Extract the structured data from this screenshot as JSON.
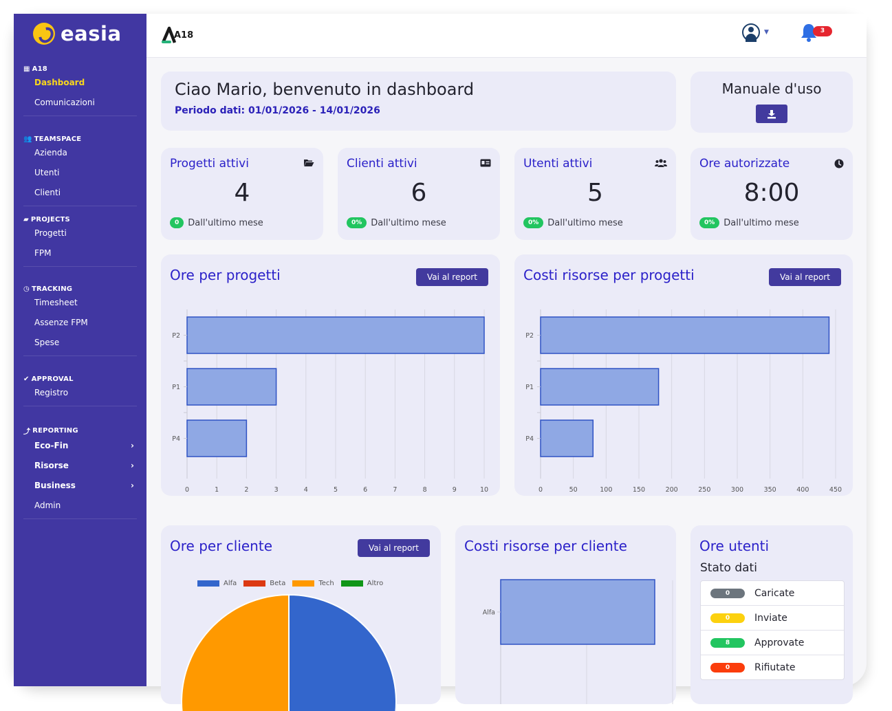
{
  "brand": {
    "name": "easia"
  },
  "sidebar": {
    "sections": [
      {
        "title": "A18",
        "icon": "building-icon",
        "items": [
          {
            "label": "Dashboard",
            "active": true
          },
          {
            "label": "Comunicazioni"
          }
        ]
      },
      {
        "title": "TEAMSPACE",
        "icon": "users-icon",
        "items": [
          {
            "label": "Azienda"
          },
          {
            "label": "Utenti"
          },
          {
            "label": "Clienti"
          }
        ]
      },
      {
        "title": "PROJECTS",
        "icon": "folder-open-icon",
        "items": [
          {
            "label": "Progetti"
          },
          {
            "label": "FPM"
          }
        ]
      },
      {
        "title": "TRACKING",
        "icon": "clock-icon",
        "items": [
          {
            "label": "Timesheet"
          },
          {
            "label": "Assenze FPM"
          },
          {
            "label": "Spese"
          }
        ]
      },
      {
        "title": "APPROVAL",
        "icon": "check-circle-icon",
        "items": [
          {
            "label": "Registro"
          }
        ]
      },
      {
        "title": "REPORTING",
        "icon": "chart-line-icon",
        "items": [
          {
            "label": "Eco-Fin",
            "submenu": true
          },
          {
            "label": "Risorse",
            "submenu": true
          },
          {
            "label": "Business",
            "submenu": true
          },
          {
            "label": "Admin"
          }
        ]
      }
    ]
  },
  "topbar": {
    "logo_text": "A18",
    "notifications_count": "3"
  },
  "welcome": {
    "title": "Ciao Mario, benvenuto in dashboard",
    "period": "Periodo dati: 01/01/2026 - 14/01/2026"
  },
  "manual": {
    "title": "Manuale d'uso"
  },
  "stats": [
    {
      "title": "Progetti attivi",
      "icon": "folder-open-icon",
      "value": "4",
      "change": "0",
      "foot": "Dall'ultimo mese"
    },
    {
      "title": "Clienti attivi",
      "icon": "id-card-icon",
      "value": "6",
      "change": "0%",
      "foot": "Dall'ultimo mese"
    },
    {
      "title": "Utenti attivi",
      "icon": "users-icon",
      "value": "5",
      "change": "0%",
      "foot": "Dall'ultimo mese"
    },
    {
      "title": "Ore autorizzate",
      "icon": "clock-icon",
      "value": "8:00",
      "change": "0%",
      "foot": "Dall'ultimo mese"
    }
  ],
  "report_label": "Vai al report",
  "chart_data": [
    {
      "type": "bar",
      "orientation": "horizontal",
      "title": "Ore per progetti",
      "categories": [
        "P2",
        "P1",
        "P4"
      ],
      "values": [
        10,
        3,
        2
      ],
      "xlim": [
        0,
        10
      ],
      "ticks": [
        0,
        1,
        2,
        3,
        4,
        5,
        6,
        7,
        8,
        9,
        10
      ],
      "color": "#8fa8e4",
      "border": "#2f52c4",
      "grid": true
    },
    {
      "type": "bar",
      "orientation": "horizontal",
      "title": "Costi risorse per progetti",
      "categories": [
        "P2",
        "P1",
        "P4"
      ],
      "values": [
        440,
        180,
        80
      ],
      "xlim": [
        0,
        450
      ],
      "ticks": [
        0,
        50,
        100,
        150,
        200,
        250,
        300,
        350,
        400,
        450
      ],
      "color": "#8fa8e4",
      "border": "#2f52c4",
      "grid": true
    },
    {
      "type": "pie",
      "title": "Ore per cliente",
      "legend_placement": "top",
      "categories": [
        "Alfa",
        "Beta",
        "Tech",
        "Altro"
      ],
      "colors": [
        "#3366cc",
        "#dc3912",
        "#ff9900",
        "#109618"
      ],
      "values": [
        50,
        0,
        50,
        0
      ]
    },
    {
      "type": "bar",
      "orientation": "horizontal",
      "title": "Costi risorse per cliente",
      "categories": [
        "Alfa"
      ],
      "values": [
        1
      ],
      "color": "#8fa8e4",
      "border": "#2f52c4",
      "grid": true
    }
  ],
  "ore_utenti": {
    "title": "Ore utenti",
    "subtitle": "Stato dati",
    "rows": [
      {
        "label": "Caricate",
        "count": "0",
        "color": "#6c757d",
        "text_color": "#ffffff"
      },
      {
        "label": "Inviate",
        "count": "0",
        "color": "#fcd10f",
        "text_color": "#ffffff"
      },
      {
        "label": "Approvate",
        "count": "8",
        "color": "#22c560",
        "text_color": "#ffffff"
      },
      {
        "label": "Rifiutate",
        "count": "0",
        "color": "#fb3d0c",
        "text_color": "#ffffff"
      }
    ]
  }
}
